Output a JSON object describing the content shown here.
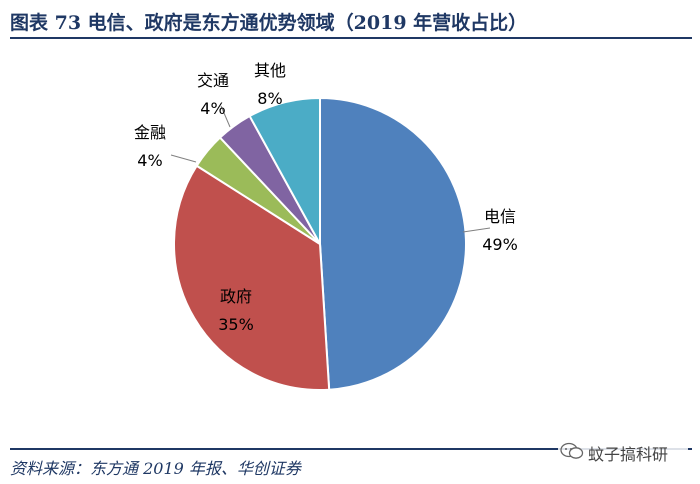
{
  "header": {
    "title": "图表 73   电信、政府是东方通优势领域（2019 年营收占比）"
  },
  "source": "资料来源：东方通 2019 年报、华创证券",
  "watermark": {
    "text": "蚊子搞科研",
    "icon": "wechat-icon"
  },
  "colors": {
    "title": "#1f3864",
    "电信": "#4f81bd",
    "政府": "#c0504d",
    "金融": "#9bbb59",
    "交通": "#8064a2",
    "其他": "#4bacc6"
  },
  "chart_data": {
    "type": "pie",
    "title": "电信、政府是东方通优势领域（2019 年营收占比）",
    "slices": [
      {
        "label": "电信",
        "value": 49,
        "display": "49%",
        "color": "#4f81bd"
      },
      {
        "label": "政府",
        "value": 35,
        "display": "35%",
        "color": "#c0504d"
      },
      {
        "label": "金融",
        "value": 4,
        "display": "4%",
        "color": "#9bbb59"
      },
      {
        "label": "交通",
        "value": 4,
        "display": "4%",
        "color": "#8064a2"
      },
      {
        "label": "其他",
        "value": 8,
        "display": "8%",
        "color": "#4bacc6"
      }
    ],
    "start_angle": "12 o'clock",
    "direction": "clockwise",
    "legend": "none (labels beside slices)"
  }
}
